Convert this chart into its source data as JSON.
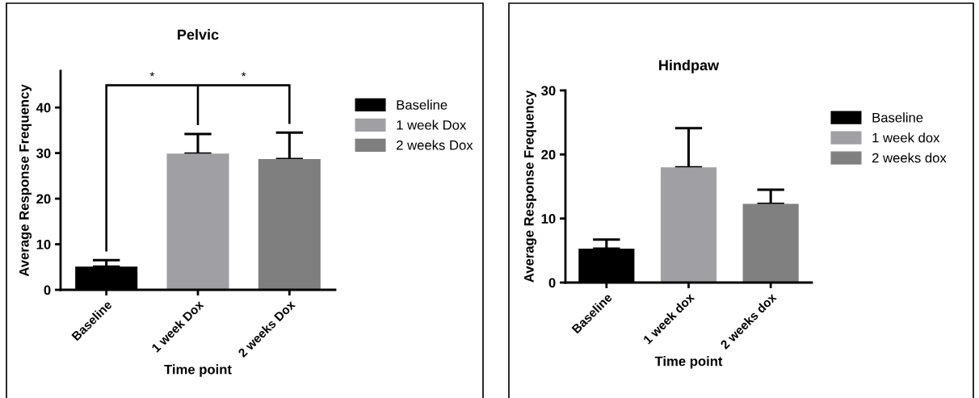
{
  "chart_data": [
    {
      "type": "bar",
      "title": "Pelvic",
      "xlabel": "Time point",
      "ylabel": "Average Response Frequency",
      "categories": [
        "Baseline",
        "1 week Dox",
        "2 weeks Dox"
      ],
      "stacked": true,
      "series": [
        {
          "name": "Baseline",
          "color": "#000000",
          "values": [
            5.1,
            null,
            null
          ],
          "errors": [
            [
              5.1,
              6.5
            ],
            null,
            null
          ]
        },
        {
          "name": "1 week Dox",
          "color": "#a0a0a4",
          "values": [
            null,
            29.9,
            null
          ],
          "errors": [
            null,
            [
              29.9,
              34.2
            ],
            null
          ]
        },
        {
          "name": "2 weeks Dox",
          "color": "#7f7f7f",
          "values": [
            null,
            null,
            28.7
          ],
          "errors": [
            null,
            null,
            [
              28.7,
              34.5
            ]
          ]
        }
      ],
      "ylim": [
        0,
        48
      ],
      "yticks": [
        0,
        10,
        20,
        30,
        40
      ],
      "grid": false,
      "legend": "right",
      "annotations": [
        "*",
        "*"
      ]
    },
    {
      "type": "bar",
      "title": "Hindpaw",
      "xlabel": "Time point",
      "ylabel": "Average Response Frequency",
      "categories": [
        "Baseline",
        "1 week dox",
        "2 weeks dox"
      ],
      "stacked": true,
      "series": [
        {
          "name": "Baseline",
          "color": "#000000",
          "values": [
            5.3,
            null,
            null
          ],
          "errors": [
            [
              5.3,
              6.7
            ],
            null,
            null
          ]
        },
        {
          "name": "1 week dox",
          "color": "#a0a0a4",
          "values": [
            null,
            18.0,
            null
          ],
          "errors": [
            null,
            [
              18.0,
              24.1
            ],
            null
          ]
        },
        {
          "name": "2 weeks dox",
          "color": "#808080",
          "values": [
            null,
            null,
            12.3
          ],
          "errors": [
            null,
            null,
            [
              12.3,
              14.5
            ]
          ]
        }
      ],
      "ylim": [
        0,
        30
      ],
      "yticks": [
        0,
        10,
        20,
        30
      ],
      "grid": false,
      "legend": "right"
    }
  ]
}
